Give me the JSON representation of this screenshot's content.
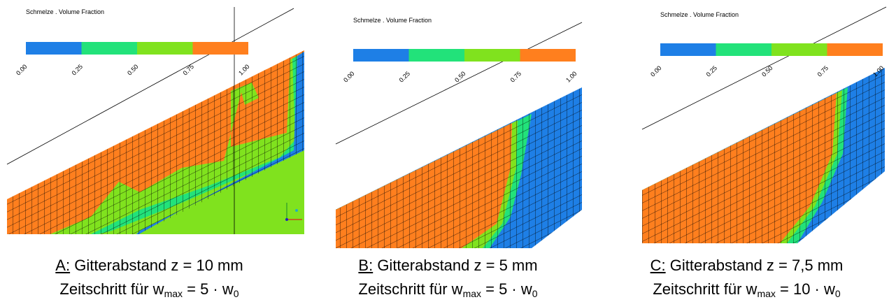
{
  "panels": [
    {
      "legend": {
        "title": "Schmelze . Volume Fraction",
        "ticks": [
          "0.00",
          "0.25",
          "0.50",
          "0.75",
          "1.00"
        ]
      },
      "caption": {
        "label": "A:",
        "line1": " Gitterabstand z = 10 mm",
        "line2": "Zeitschritt für w",
        "sub1": "max",
        "mid": " = 5 · w",
        "sub2": "0"
      }
    },
    {
      "legend": {
        "title": "Schmelze . Volume Fraction",
        "ticks": [
          "0.00",
          "0.25",
          "0.50",
          "0.75",
          "1.00"
        ]
      },
      "caption": {
        "label": "B:",
        "line1": " Gitterabstand z = 5 mm",
        "line2": "Zeitschritt für w",
        "sub1": "max",
        "mid": " = 5 · w",
        "sub2": "0"
      }
    },
    {
      "legend": {
        "title": "Schmelze . Volume Fraction",
        "ticks": [
          "0.00",
          "0.25",
          "0.50",
          "0.75",
          "1.00"
        ]
      },
      "caption": {
        "label": "C:",
        "line1": " Gitterabstand z = 7,5 mm",
        "line2": "Zeitschritt für w",
        "sub1": "max",
        "mid": " = 10 · w",
        "sub2": "0"
      }
    }
  ],
  "colors": [
    "#1e7fe6",
    "#22e27a",
    "#80e21e",
    "#ff7f1e"
  ]
}
